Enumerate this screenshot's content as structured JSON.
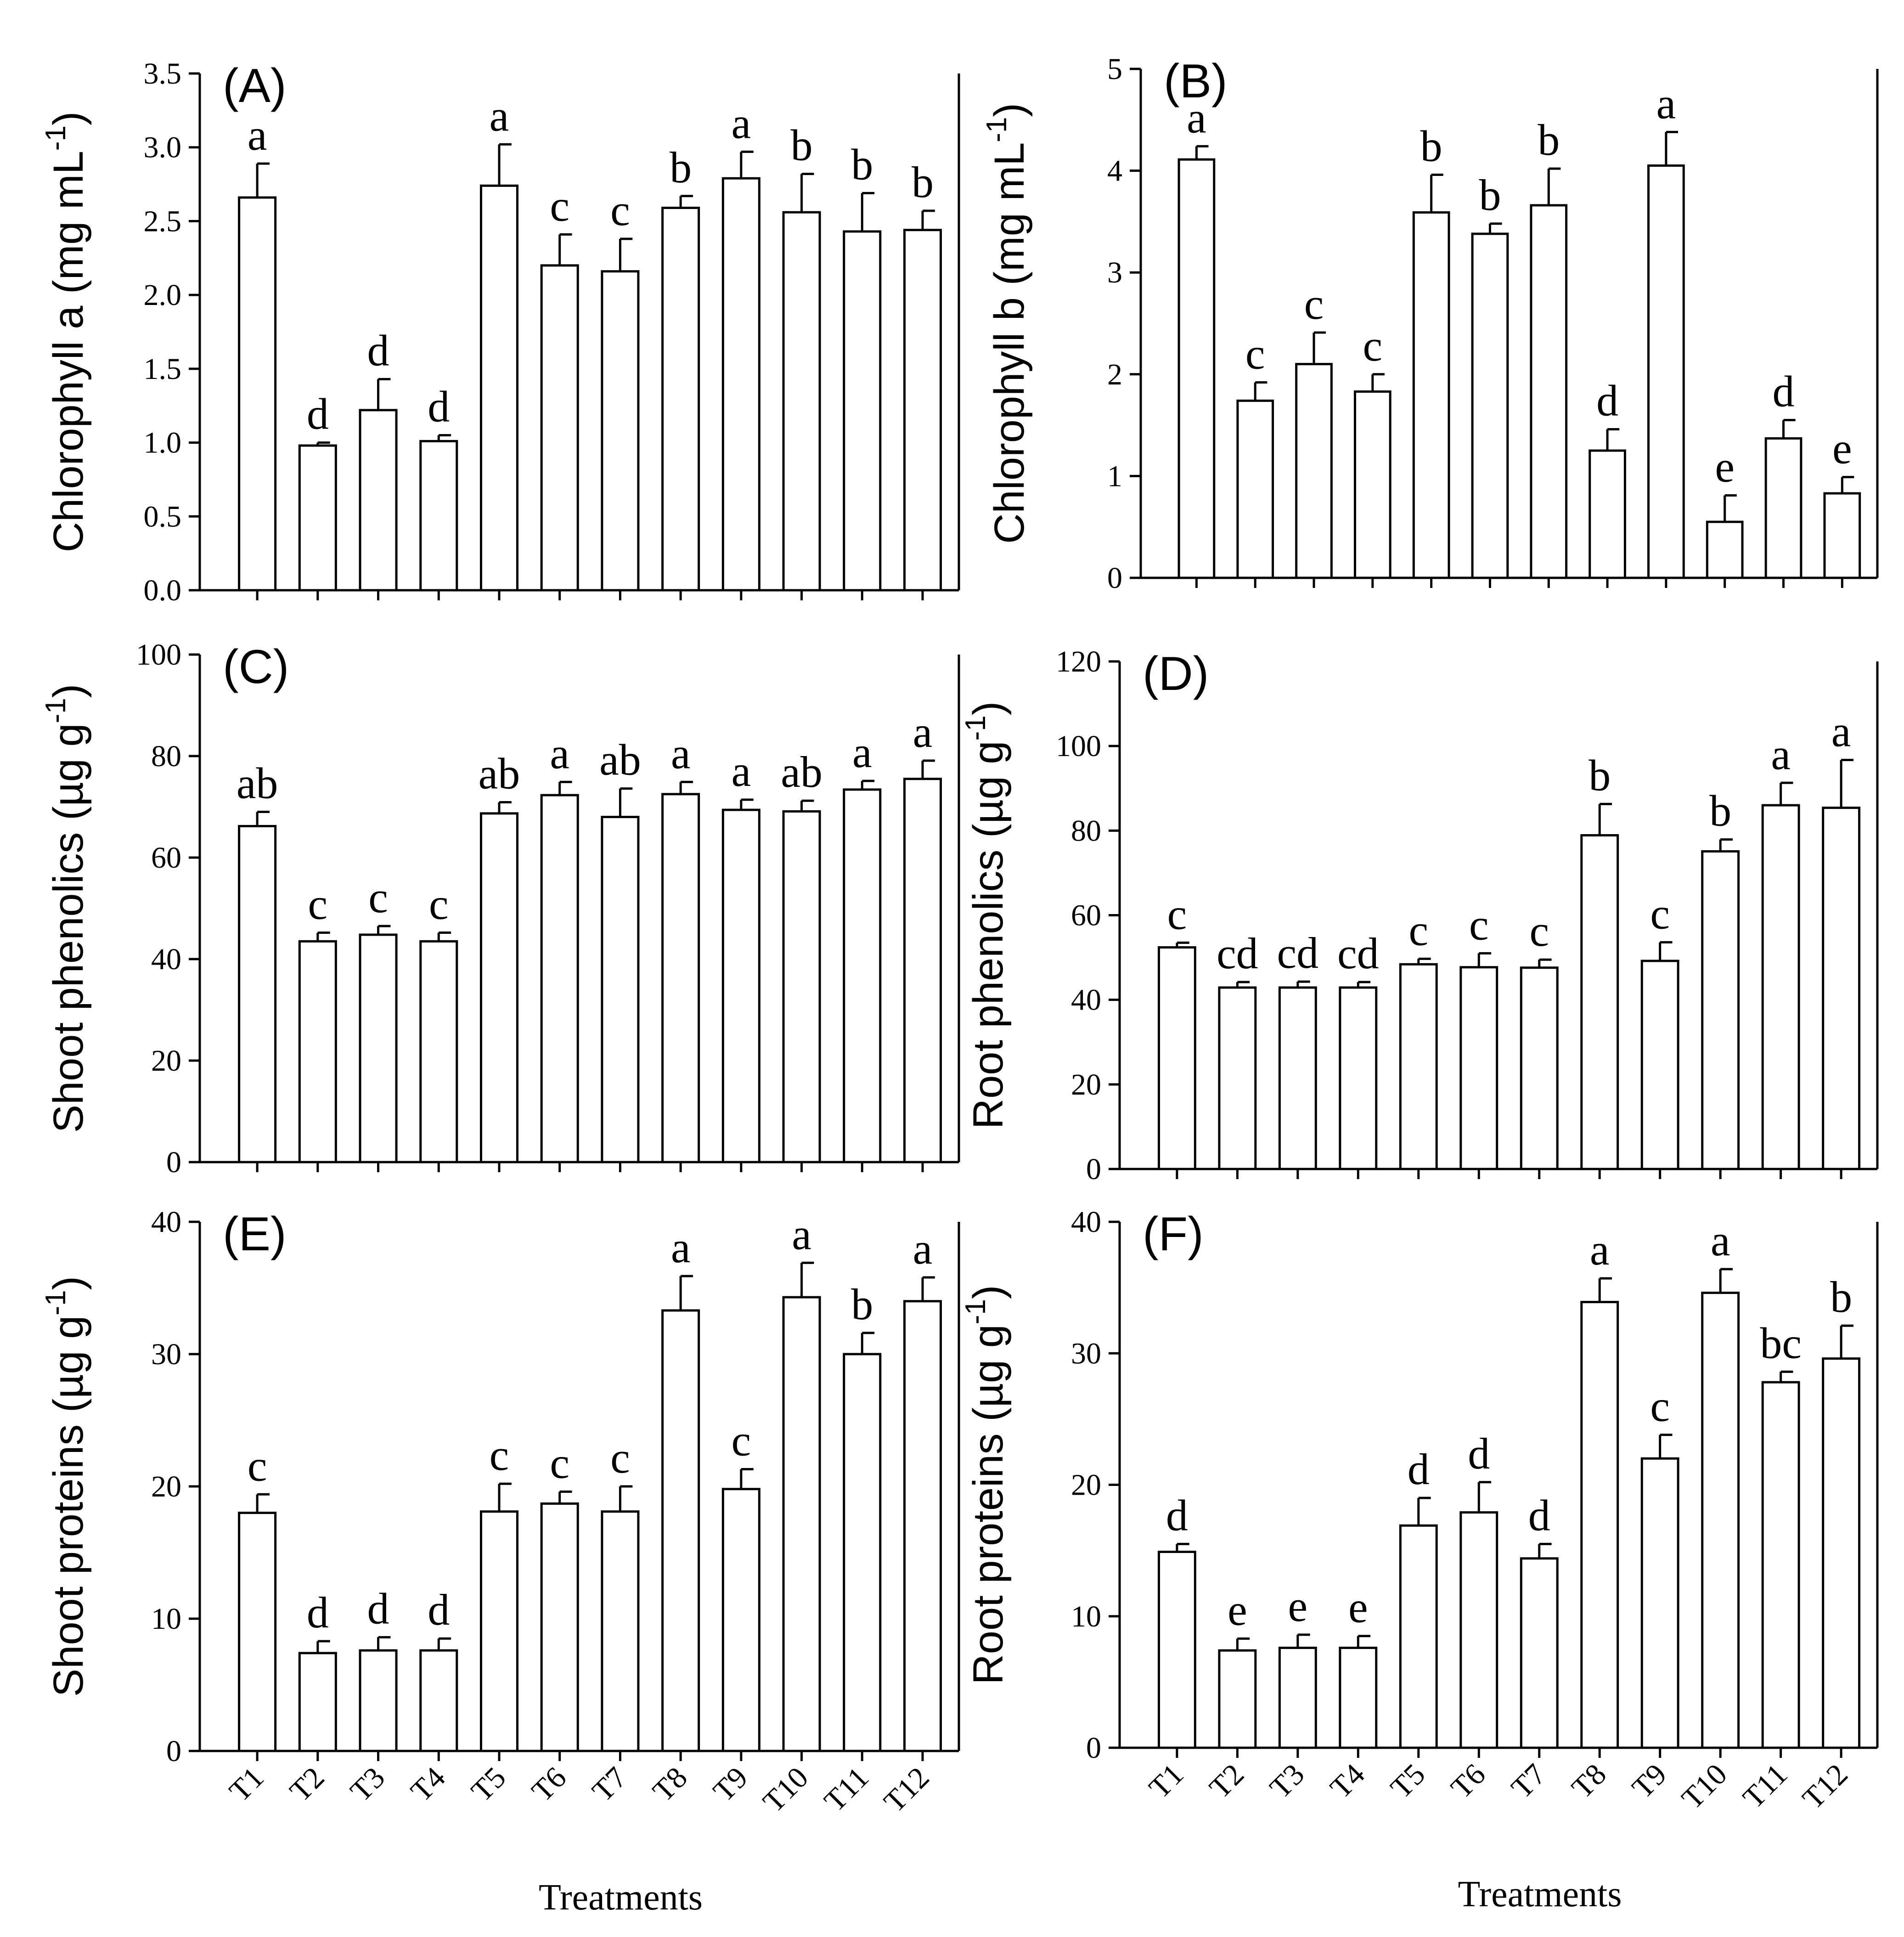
{
  "chart_data": [
    {
      "type": "bar",
      "panel_label": "(A)",
      "ylabel": "Chlorophyll a (mg mL",
      "ylabel_sup": "-1",
      "ylabel_tail": ")",
      "xlabel": "",
      "categories": [
        "T1",
        "T2",
        "T3",
        "T4",
        "T5",
        "T6",
        "T7",
        "T8",
        "T9",
        "T10",
        "T11",
        "T12"
      ],
      "ylim": [
        0,
        3.5
      ],
      "yticks": [
        "0.0",
        "0.5",
        "1.0",
        "1.5",
        "2.0",
        "2.5",
        "3.0",
        "3.5"
      ],
      "show_xtick_labels": false,
      "series": [
        {
          "values": [
            2.66,
            0.98,
            1.22,
            1.01,
            2.74,
            2.2,
            2.16,
            2.59,
            2.79,
            2.56,
            2.43,
            2.44
          ],
          "errors": [
            0.23,
            0.02,
            0.21,
            0.04,
            0.28,
            0.21,
            0.22,
            0.08,
            0.18,
            0.26,
            0.26,
            0.13
          ],
          "letters": [
            "a",
            "d",
            "d",
            "d",
            "a",
            "c",
            "c",
            "b",
            "a",
            "b",
            "b",
            "b"
          ]
        }
      ]
    },
    {
      "type": "bar",
      "panel_label": "(B)",
      "ylabel": "Chlorophyll b (mg mL",
      "ylabel_sup": "-1",
      "ylabel_tail": ")",
      "xlabel": "",
      "categories": [
        "T1",
        "T2",
        "T3",
        "T4",
        "T5",
        "T6",
        "T7",
        "T8",
        "T9",
        "T10",
        "T11",
        "T12"
      ],
      "ylim": [
        0,
        5
      ],
      "yticks": [
        "0",
        "1",
        "2",
        "3",
        "4",
        "5"
      ],
      "show_xtick_labels": false,
      "series": [
        {
          "values": [
            4.11,
            1.74,
            2.1,
            1.83,
            3.59,
            3.38,
            3.66,
            1.25,
            4.05,
            0.55,
            1.37,
            0.83
          ],
          "errors": [
            0.13,
            0.18,
            0.31,
            0.17,
            0.37,
            0.1,
            0.36,
            0.21,
            0.33,
            0.26,
            0.18,
            0.16
          ],
          "letters": [
            "a",
            "c",
            "c",
            "c",
            "b",
            "b",
            "b",
            "d",
            "a",
            "e",
            "d",
            "e"
          ]
        }
      ]
    },
    {
      "type": "bar",
      "panel_label": "(C)",
      "ylabel": "Shoot phenolics (µg g",
      "ylabel_sup": "-1",
      "ylabel_tail": ")",
      "xlabel": "",
      "categories": [
        "T1",
        "T2",
        "T3",
        "T4",
        "T5",
        "T6",
        "T7",
        "T8",
        "T9",
        "T10",
        "T11",
        "T12"
      ],
      "ylim": [
        0,
        100
      ],
      "yticks": [
        "0",
        "20",
        "40",
        "60",
        "80",
        "100"
      ],
      "show_xtick_labels": false,
      "series": [
        {
          "values": [
            66.2,
            43.5,
            44.8,
            43.5,
            68.7,
            72.3,
            68.0,
            72.5,
            69.4,
            69.1,
            73.4,
            75.5
          ],
          "errors": [
            2.8,
            1.7,
            1.7,
            1.7,
            2.2,
            2.6,
            5.6,
            2.4,
            2.0,
            2.1,
            1.7,
            3.6
          ],
          "letters": [
            "ab",
            "c",
            "c",
            "c",
            "ab",
            "a",
            "ab",
            "a",
            "a",
            "ab",
            "a",
            "a"
          ]
        }
      ]
    },
    {
      "type": "bar",
      "panel_label": "(D)",
      "ylabel": "Root phenolics (µg g",
      "ylabel_sup": "-1",
      "ylabel_tail": ")",
      "xlabel": "",
      "categories": [
        "T1",
        "T2",
        "T3",
        "T4",
        "T5",
        "T6",
        "T7",
        "T8",
        "T9",
        "T10",
        "T11",
        "T12"
      ],
      "ylim": [
        0,
        120
      ],
      "yticks": [
        "0",
        "20",
        "40",
        "60",
        "80",
        "100",
        "120"
      ],
      "show_xtick_labels": false,
      "series": [
        {
          "values": [
            52.4,
            42.9,
            42.9,
            42.9,
            48.4,
            47.7,
            47.6,
            78.9,
            49.2,
            75.1,
            86.0,
            85.4
          ],
          "errors": [
            1.1,
            1.3,
            1.4,
            1.3,
            1.3,
            3.3,
            1.9,
            7.4,
            4.4,
            2.8,
            5.3,
            11.3
          ],
          "letters": [
            "c",
            "cd",
            "cd",
            "cd",
            "c",
            "c",
            "c",
            "b",
            "c",
            "b",
            "a",
            "a"
          ]
        }
      ]
    },
    {
      "type": "bar",
      "panel_label": "(E)",
      "ylabel": "Shoot proteins (µg g",
      "ylabel_sup": "-1",
      "ylabel_tail": ")",
      "xlabel": "Treatments",
      "categories": [
        "T1",
        "T2",
        "T3",
        "T4",
        "T5",
        "T6",
        "T7",
        "T8",
        "T9",
        "T10",
        "T11",
        "T12"
      ],
      "ylim": [
        0,
        40
      ],
      "yticks": [
        "0",
        "10",
        "20",
        "30",
        "40"
      ],
      "show_xtick_labels": true,
      "series": [
        {
          "values": [
            18.0,
            7.4,
            7.6,
            7.6,
            18.1,
            18.7,
            18.1,
            33.3,
            19.8,
            34.3,
            30.0,
            34.0
          ],
          "errors": [
            1.4,
            0.9,
            1.0,
            0.9,
            2.1,
            0.9,
            1.9,
            2.6,
            1.5,
            2.6,
            1.6,
            1.8
          ],
          "letters": [
            "c",
            "d",
            "d",
            "d",
            "c",
            "c",
            "c",
            "a",
            "c",
            "a",
            "b",
            "a"
          ]
        }
      ]
    },
    {
      "type": "bar",
      "panel_label": "(F)",
      "ylabel": "Root proteins (µg g",
      "ylabel_sup": "-1",
      "ylabel_tail": ")",
      "xlabel": "Treatments",
      "categories": [
        "T1",
        "T2",
        "T3",
        "T4",
        "T5",
        "T6",
        "T7",
        "T8",
        "T9",
        "T10",
        "T11",
        "T12"
      ],
      "ylim": [
        0,
        40
      ],
      "yticks": [
        "0",
        "10",
        "20",
        "30",
        "40"
      ],
      "show_xtick_labels": true,
      "series": [
        {
          "values": [
            14.9,
            7.4,
            7.6,
            7.6,
            16.9,
            17.9,
            14.4,
            33.9,
            22.0,
            34.6,
            27.8,
            29.6
          ],
          "errors": [
            0.6,
            0.9,
            1.0,
            0.9,
            2.1,
            2.3,
            1.1,
            1.8,
            1.8,
            1.8,
            0.8,
            2.5
          ],
          "letters": [
            "d",
            "e",
            "e",
            "e",
            "d",
            "d",
            "d",
            "a",
            "c",
            "a",
            "bc",
            "b"
          ]
        }
      ]
    }
  ]
}
